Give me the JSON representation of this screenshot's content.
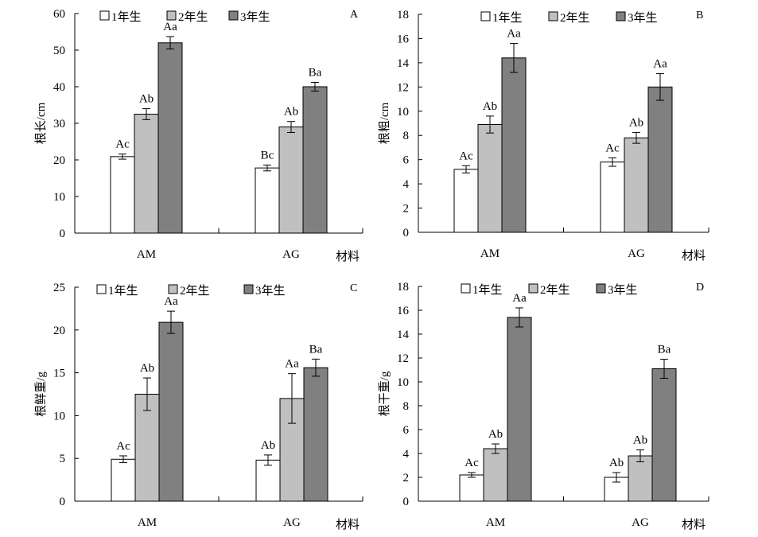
{
  "legend": [
    "1年生",
    "2年生",
    "3年生"
  ],
  "colors": [
    "#ffffff",
    "#c0c0c0",
    "#808080"
  ],
  "chart_data": [
    {
      "type": "bar",
      "panel": "A",
      "ylabel": "根长/cm",
      "xlabel": "材料",
      "categories": [
        "AM",
        "AG"
      ],
      "ylim": [
        0,
        60
      ],
      "yticks": [
        0,
        10,
        20,
        30,
        40,
        50,
        60
      ],
      "series": [
        {
          "name": "1年生",
          "values": [
            20.9,
            17.8
          ],
          "errors": [
            0.7,
            0.8
          ],
          "labels": [
            "Ac",
            "Bc"
          ]
        },
        {
          "name": "2年生",
          "values": [
            32.5,
            29.0
          ],
          "errors": [
            1.5,
            1.5
          ],
          "labels": [
            "Ab",
            "Ab"
          ]
        },
        {
          "name": "3年生",
          "values": [
            52.0,
            40.0
          ],
          "errors": [
            1.7,
            1.2
          ],
          "labels": [
            "Aa",
            "Ba"
          ]
        }
      ]
    },
    {
      "type": "bar",
      "panel": "B",
      "ylabel": "根粗/cm",
      "xlabel": "材料",
      "categories": [
        "AM",
        "AG"
      ],
      "ylim": [
        0,
        18
      ],
      "yticks": [
        0,
        2,
        4,
        6,
        8,
        10,
        12,
        14,
        16,
        18
      ],
      "series": [
        {
          "name": "1年生",
          "values": [
            5.2,
            5.8
          ],
          "errors": [
            0.3,
            0.35
          ],
          "labels": [
            "Ac",
            "Ac"
          ]
        },
        {
          "name": "2年生",
          "values": [
            8.9,
            7.8
          ],
          "errors": [
            0.7,
            0.45
          ],
          "labels": [
            "Ab",
            "Ab"
          ]
        },
        {
          "name": "3年生",
          "values": [
            14.4,
            12.0
          ],
          "errors": [
            1.2,
            1.1
          ],
          "labels": [
            "Aa",
            "Aa"
          ]
        }
      ]
    },
    {
      "type": "bar",
      "panel": "C",
      "ylabel": "根鲜重/g",
      "xlabel": "材料",
      "categories": [
        "AM",
        "AG"
      ],
      "ylim": [
        0,
        25
      ],
      "yticks": [
        0,
        5,
        10,
        15,
        20,
        25
      ],
      "series": [
        {
          "name": "1年生",
          "values": [
            4.9,
            4.8
          ],
          "errors": [
            0.4,
            0.6
          ],
          "labels": [
            "Ac",
            "Ab"
          ]
        },
        {
          "name": "2年生",
          "values": [
            12.5,
            12.0
          ],
          "errors": [
            1.9,
            2.9
          ],
          "labels": [
            "Ab",
            "Aa"
          ]
        },
        {
          "name": "3年生",
          "values": [
            20.9,
            15.6
          ],
          "errors": [
            1.3,
            1.0
          ],
          "labels": [
            "Aa",
            "Ba"
          ]
        }
      ]
    },
    {
      "type": "bar",
      "panel": "D",
      "ylabel": "根干重/g",
      "xlabel": "材料",
      "categories": [
        "AM",
        "AG"
      ],
      "ylim": [
        0,
        18
      ],
      "yticks": [
        0,
        2,
        4,
        6,
        8,
        10,
        12,
        14,
        16,
        18
      ],
      "series": [
        {
          "name": "1年生",
          "values": [
            2.2,
            2.0
          ],
          "errors": [
            0.2,
            0.4
          ],
          "labels": [
            "Ac",
            "Ab"
          ]
        },
        {
          "name": "2年生",
          "values": [
            4.4,
            3.8
          ],
          "errors": [
            0.4,
            0.5
          ],
          "labels": [
            "Ab",
            "Ab"
          ]
        },
        {
          "name": "3年生",
          "values": [
            15.4,
            11.1
          ],
          "errors": [
            0.8,
            0.8
          ],
          "labels": [
            "Aa",
            "Ba"
          ]
        }
      ]
    }
  ]
}
